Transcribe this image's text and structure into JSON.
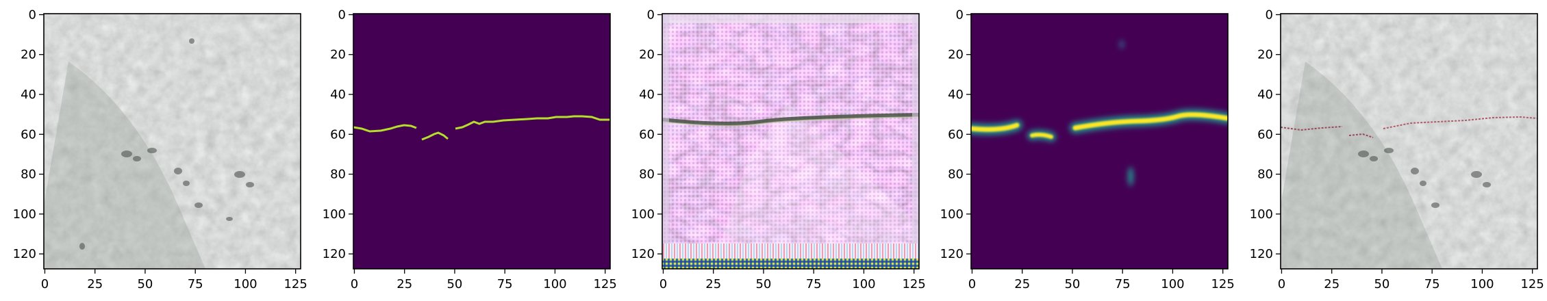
{
  "figure": {
    "panels": [
      {
        "content": "concrete-texture",
        "x_ticks": [
          "0",
          "25",
          "50",
          "75",
          "100",
          "125"
        ],
        "y_ticks": [
          "0",
          "20",
          "40",
          "60",
          "80",
          "100",
          "120"
        ]
      },
      {
        "content": "binary-mask",
        "x_ticks": [
          "0",
          "25",
          "50",
          "75",
          "100",
          "125"
        ],
        "y_ticks": [
          "0",
          "20",
          "40",
          "60",
          "80",
          "100",
          "120"
        ]
      },
      {
        "content": "noisy-reconstruction",
        "x_ticks": [
          "0",
          "25",
          "50",
          "75",
          "100",
          "125"
        ],
        "y_ticks": [
          "0",
          "20",
          "40",
          "60",
          "80",
          "100",
          "120"
        ]
      },
      {
        "content": "predicted-heatmap",
        "x_ticks": [
          "0",
          "25",
          "50",
          "75",
          "100",
          "125"
        ],
        "y_ticks": [
          "0",
          "20",
          "40",
          "60",
          "80",
          "100",
          "120"
        ]
      },
      {
        "content": "overlay",
        "x_ticks": [
          "0",
          "25",
          "50",
          "75",
          "100",
          "125"
        ],
        "y_ticks": [
          "0",
          "20",
          "40",
          "60",
          "80",
          "100",
          "120"
        ]
      }
    ],
    "image_size": 128,
    "colors": {
      "concrete": "#a4a8a5",
      "mask_background": "#440154",
      "mask_line": "#b5de2b",
      "heat_low": "#440154",
      "heat_mid": "#21918c",
      "heat_high": "#fde725",
      "noise_magenta": "#b06fc0",
      "noise_light": "#e8d8ef"
    }
  }
}
